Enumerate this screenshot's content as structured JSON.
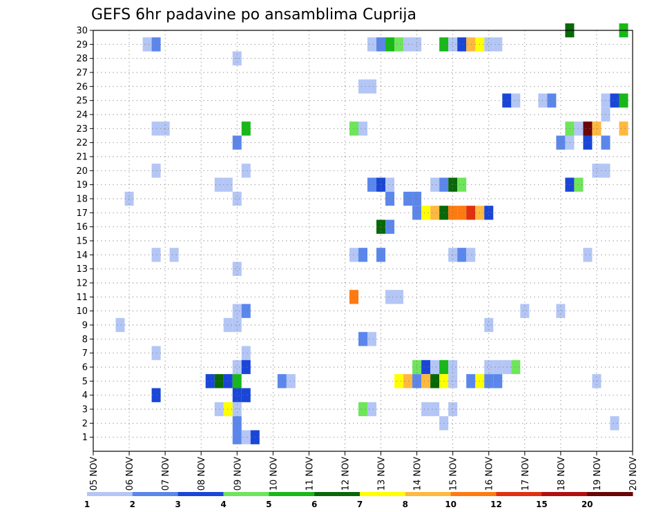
{
  "chart_data": {
    "type": "heatmap",
    "title": "GEFS 6hr padavine po ansamblima Cuprija",
    "x_range": [
      0,
      15
    ],
    "x_ticks": [
      {
        "x": 0,
        "label": "05 NOV"
      },
      {
        "x": 1,
        "label": "06 NOV"
      },
      {
        "x": 2,
        "label": "07 NOV"
      },
      {
        "x": 3,
        "label": "08 NOV"
      },
      {
        "x": 4,
        "label": "09 NOV"
      },
      {
        "x": 5,
        "label": "10 NOV"
      },
      {
        "x": 6,
        "label": "11 NOV"
      },
      {
        "x": 7,
        "label": "12 NOV"
      },
      {
        "x": 8,
        "label": "13 NOV"
      },
      {
        "x": 9,
        "label": "14 NOV"
      },
      {
        "x": 10,
        "label": "15 NOV"
      },
      {
        "x": 11,
        "label": "16 NOV"
      },
      {
        "x": 12,
        "label": "17 NOV"
      },
      {
        "x": 13,
        "label": "18 NOV"
      },
      {
        "x": 14,
        "label": "19 NOV"
      },
      {
        "x": 15,
        "label": "20 NOV"
      }
    ],
    "y_range": [
      0,
      30
    ],
    "y_ticks": [
      1,
      2,
      3,
      4,
      5,
      6,
      7,
      8,
      9,
      10,
      11,
      12,
      13,
      14,
      15,
      16,
      17,
      18,
      19,
      20,
      21,
      22,
      23,
      24,
      25,
      26,
      27,
      28,
      29,
      30
    ],
    "grid": true,
    "legend_placement": "bottom",
    "colorbar": {
      "labels": [
        "1",
        "2",
        "3",
        "4",
        "5",
        "6",
        "7",
        "8",
        "10",
        "12",
        "15",
        "20"
      ],
      "colors": [
        "#b4c6f5",
        "#5b87ec",
        "#1a46d8",
        "#6ee55a",
        "#18b818",
        "#086808",
        "#ffff00",
        "#ffb840",
        "#ff7a10",
        "#e03010",
        "#b01010",
        "#6a0606"
      ]
    },
    "cells": [
      {
        "y": 30,
        "x": 13.25,
        "c": 5
      },
      {
        "y": 30,
        "x": 14.75,
        "c": 4
      },
      {
        "y": 29,
        "x": 1.5,
        "c": 0
      },
      {
        "y": 29,
        "x": 1.75,
        "c": 1
      },
      {
        "y": 29,
        "x": 7.75,
        "c": 0
      },
      {
        "y": 29,
        "x": 8.0,
        "c": 1
      },
      {
        "y": 29,
        "x": 8.25,
        "c": 4
      },
      {
        "y": 29,
        "x": 8.5,
        "c": 3
      },
      {
        "y": 29,
        "x": 8.75,
        "c": 0
      },
      {
        "y": 29,
        "x": 9.0,
        "c": 0
      },
      {
        "y": 29,
        "x": 9.75,
        "c": 4
      },
      {
        "y": 29,
        "x": 10.0,
        "c": 0
      },
      {
        "y": 29,
        "x": 10.25,
        "c": 2
      },
      {
        "y": 29,
        "x": 10.5,
        "c": 7
      },
      {
        "y": 29,
        "x": 10.75,
        "c": 6
      },
      {
        "y": 29,
        "x": 11.0,
        "c": 0
      },
      {
        "y": 29,
        "x": 11.25,
        "c": 0
      },
      {
        "y": 28,
        "x": 4.0,
        "c": 0
      },
      {
        "y": 26,
        "x": 7.5,
        "c": 0
      },
      {
        "y": 26,
        "x": 7.75,
        "c": 0
      },
      {
        "y": 25,
        "x": 11.5,
        "c": 2
      },
      {
        "y": 25,
        "x": 11.75,
        "c": 0
      },
      {
        "y": 25,
        "x": 12.5,
        "c": 0
      },
      {
        "y": 25,
        "x": 12.75,
        "c": 1
      },
      {
        "y": 25,
        "x": 14.25,
        "c": 0
      },
      {
        "y": 25,
        "x": 14.5,
        "c": 2
      },
      {
        "y": 25,
        "x": 14.75,
        "c": 4
      },
      {
        "y": 24,
        "x": 14.25,
        "c": 0
      },
      {
        "y": 23,
        "x": 1.75,
        "c": 0
      },
      {
        "y": 23,
        "x": 2.0,
        "c": 0
      },
      {
        "y": 23,
        "x": 4.25,
        "c": 4
      },
      {
        "y": 23,
        "x": 7.25,
        "c": 3
      },
      {
        "y": 23,
        "x": 7.5,
        "c": 0
      },
      {
        "y": 23,
        "x": 13.25,
        "c": 3
      },
      {
        "y": 23,
        "x": 13.5,
        "c": 0
      },
      {
        "y": 23,
        "x": 13.75,
        "c": 11
      },
      {
        "y": 23,
        "x": 14.0,
        "c": 7
      },
      {
        "y": 23,
        "x": 14.75,
        "c": 7
      },
      {
        "y": 22,
        "x": 4.0,
        "c": 1
      },
      {
        "y": 22,
        "x": 13.0,
        "c": 1
      },
      {
        "y": 22,
        "x": 13.25,
        "c": 0
      },
      {
        "y": 22,
        "x": 13.75,
        "c": 2
      },
      {
        "y": 22,
        "x": 14.25,
        "c": 1
      },
      {
        "y": 20,
        "x": 1.75,
        "c": 0
      },
      {
        "y": 20,
        "x": 4.25,
        "c": 0
      },
      {
        "y": 20,
        "x": 14.0,
        "c": 0
      },
      {
        "y": 20,
        "x": 14.25,
        "c": 0
      },
      {
        "y": 19,
        "x": 3.5,
        "c": 0
      },
      {
        "y": 19,
        "x": 3.75,
        "c": 0
      },
      {
        "y": 19,
        "x": 7.75,
        "c": 1
      },
      {
        "y": 19,
        "x": 8.0,
        "c": 2
      },
      {
        "y": 19,
        "x": 8.25,
        "c": 0
      },
      {
        "y": 19,
        "x": 9.5,
        "c": 0
      },
      {
        "y": 19,
        "x": 9.75,
        "c": 1
      },
      {
        "y": 19,
        "x": 10.0,
        "c": 5
      },
      {
        "y": 19,
        "x": 10.25,
        "c": 3
      },
      {
        "y": 19,
        "x": 13.25,
        "c": 2
      },
      {
        "y": 19,
        "x": 13.5,
        "c": 3
      },
      {
        "y": 18,
        "x": 1.0,
        "c": 0
      },
      {
        "y": 18,
        "x": 4.0,
        "c": 0
      },
      {
        "y": 18,
        "x": 8.25,
        "c": 1
      },
      {
        "y": 18,
        "x": 8.75,
        "c": 1
      },
      {
        "y": 18,
        "x": 9.0,
        "c": 1
      },
      {
        "y": 17,
        "x": 9.0,
        "c": 1
      },
      {
        "y": 17,
        "x": 9.25,
        "c": 6
      },
      {
        "y": 17,
        "x": 9.5,
        "c": 7
      },
      {
        "y": 17,
        "x": 9.75,
        "c": 5
      },
      {
        "y": 17,
        "x": 10.0,
        "c": 8
      },
      {
        "y": 17,
        "x": 10.25,
        "c": 8
      },
      {
        "y": 17,
        "x": 10.5,
        "c": 9
      },
      {
        "y": 17,
        "x": 10.75,
        "c": 7
      },
      {
        "y": 17,
        "x": 11.0,
        "c": 2
      },
      {
        "y": 16,
        "x": 8.0,
        "c": 5
      },
      {
        "y": 16,
        "x": 8.25,
        "c": 1
      },
      {
        "y": 14,
        "x": 1.75,
        "c": 0
      },
      {
        "y": 14,
        "x": 2.25,
        "c": 0
      },
      {
        "y": 14,
        "x": 7.25,
        "c": 0
      },
      {
        "y": 14,
        "x": 7.5,
        "c": 1
      },
      {
        "y": 14,
        "x": 8.0,
        "c": 1
      },
      {
        "y": 14,
        "x": 10.0,
        "c": 0
      },
      {
        "y": 14,
        "x": 10.25,
        "c": 1
      },
      {
        "y": 14,
        "x": 10.5,
        "c": 0
      },
      {
        "y": 14,
        "x": 13.75,
        "c": 0
      },
      {
        "y": 13,
        "x": 4.0,
        "c": 0
      },
      {
        "y": 11,
        "x": 7.25,
        "c": 8
      },
      {
        "y": 11,
        "x": 8.25,
        "c": 0
      },
      {
        "y": 11,
        "x": 8.5,
        "c": 0
      },
      {
        "y": 10,
        "x": 4.0,
        "c": 0
      },
      {
        "y": 10,
        "x": 4.25,
        "c": 1
      },
      {
        "y": 10,
        "x": 12.0,
        "c": 0
      },
      {
        "y": 10,
        "x": 13.0,
        "c": 0
      },
      {
        "y": 9,
        "x": 0.75,
        "c": 0
      },
      {
        "y": 9,
        "x": 3.75,
        "c": 0
      },
      {
        "y": 9,
        "x": 4.0,
        "c": 0
      },
      {
        "y": 9,
        "x": 11.0,
        "c": 0
      },
      {
        "y": 8,
        "x": 7.5,
        "c": 1
      },
      {
        "y": 8,
        "x": 7.75,
        "c": 0
      },
      {
        "y": 7,
        "x": 1.75,
        "c": 0
      },
      {
        "y": 7,
        "x": 4.25,
        "c": 0
      },
      {
        "y": 6,
        "x": 4.0,
        "c": 0
      },
      {
        "y": 6,
        "x": 4.25,
        "c": 2
      },
      {
        "y": 6,
        "x": 9.0,
        "c": 3
      },
      {
        "y": 6,
        "x": 9.25,
        "c": 2
      },
      {
        "y": 6,
        "x": 9.5,
        "c": 0
      },
      {
        "y": 6,
        "x": 9.75,
        "c": 4
      },
      {
        "y": 6,
        "x": 10.0,
        "c": 0
      },
      {
        "y": 6,
        "x": 11.0,
        "c": 0
      },
      {
        "y": 6,
        "x": 11.25,
        "c": 0
      },
      {
        "y": 6,
        "x": 11.5,
        "c": 0
      },
      {
        "y": 6,
        "x": 11.75,
        "c": 3
      },
      {
        "y": 5,
        "x": 3.25,
        "c": 2
      },
      {
        "y": 5,
        "x": 3.5,
        "c": 5
      },
      {
        "y": 5,
        "x": 3.75,
        "c": 2
      },
      {
        "y": 5,
        "x": 4.0,
        "c": 4
      },
      {
        "y": 5,
        "x": 5.25,
        "c": 1
      },
      {
        "y": 5,
        "x": 5.5,
        "c": 0
      },
      {
        "y": 5,
        "x": 8.5,
        "c": 6
      },
      {
        "y": 5,
        "x": 8.75,
        "c": 7
      },
      {
        "y": 5,
        "x": 9.0,
        "c": 1
      },
      {
        "y": 5,
        "x": 9.25,
        "c": 7
      },
      {
        "y": 5,
        "x": 9.5,
        "c": 5
      },
      {
        "y": 5,
        "x": 9.75,
        "c": 6
      },
      {
        "y": 5,
        "x": 10.0,
        "c": 0
      },
      {
        "y": 5,
        "x": 10.5,
        "c": 1
      },
      {
        "y": 5,
        "x": 10.75,
        "c": 6
      },
      {
        "y": 5,
        "x": 11.0,
        "c": 1
      },
      {
        "y": 5,
        "x": 11.25,
        "c": 1
      },
      {
        "y": 5,
        "x": 14.0,
        "c": 0
      },
      {
        "y": 4,
        "x": 1.75,
        "c": 2
      },
      {
        "y": 4,
        "x": 4.0,
        "c": 2
      },
      {
        "y": 4,
        "x": 4.25,
        "c": 2
      },
      {
        "y": 3,
        "x": 3.5,
        "c": 0
      },
      {
        "y": 3,
        "x": 3.75,
        "c": 6
      },
      {
        "y": 3,
        "x": 4.0,
        "c": 0
      },
      {
        "y": 3,
        "x": 7.5,
        "c": 3
      },
      {
        "y": 3,
        "x": 7.75,
        "c": 0
      },
      {
        "y": 3,
        "x": 9.25,
        "c": 0
      },
      {
        "y": 3,
        "x": 9.5,
        "c": 0
      },
      {
        "y": 3,
        "x": 10.0,
        "c": 0
      },
      {
        "y": 2,
        "x": 4.0,
        "c": 1
      },
      {
        "y": 2,
        "x": 9.75,
        "c": 0
      },
      {
        "y": 2,
        "x": 14.5,
        "c": 0
      },
      {
        "y": 1,
        "x": 4.0,
        "c": 1
      },
      {
        "y": 1,
        "x": 4.25,
        "c": 0
      },
      {
        "y": 1,
        "x": 4.5,
        "c": 2
      }
    ]
  }
}
